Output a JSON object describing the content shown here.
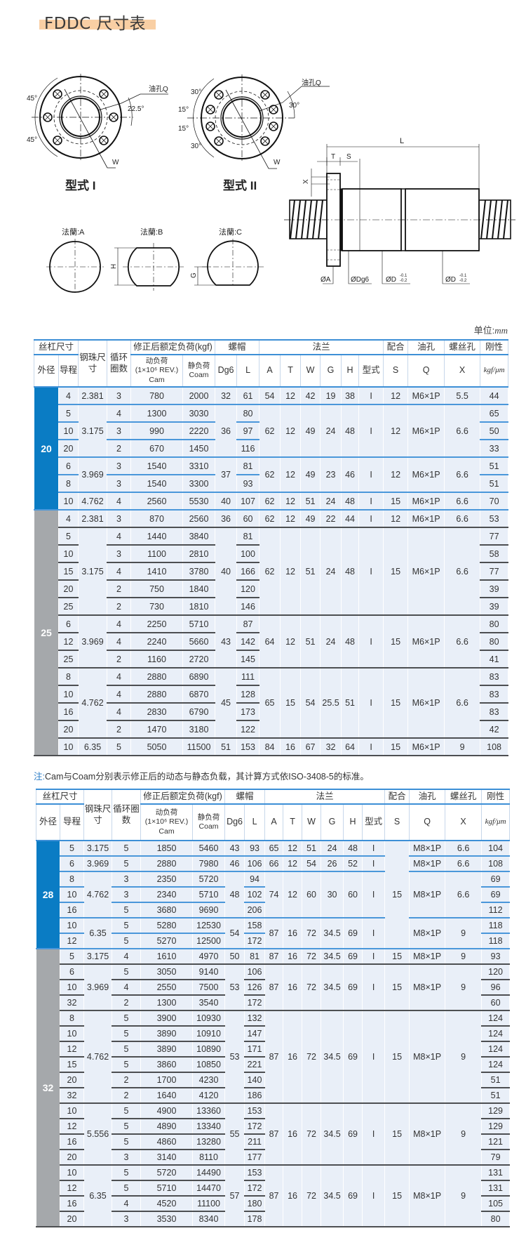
{
  "title": "FDDC 尺寸表",
  "drawings": {
    "type1_label": "型式 I",
    "type2_label": "型式 II",
    "type1_angles": [
      "45°",
      "45°",
      "22.5°"
    ],
    "type2_angles": [
      "30°",
      "15°",
      "15°",
      "30°",
      "30°"
    ],
    "oil_hole": "油孔Q",
    "w": "W",
    "flange_a": "法蘭:A",
    "flange_b": "法蘭:B",
    "flange_c": "法蘭:C",
    "h": "H",
    "g": "G",
    "side": {
      "L": "L",
      "T": "T",
      "S": "S",
      "X": "X",
      "A": "ØA",
      "Dg6": "ØDg6",
      "D": "ØD",
      "tol_upper": "-0.1",
      "tol_lower": "-0.2"
    }
  },
  "unit": {
    "label": "单位:",
    "value": "mm"
  },
  "colors": {
    "blue": "#0a7cc4",
    "grey": "#a5a8ab",
    "highlight": "#f9cfa4"
  },
  "header": {
    "screw": "丝杠尺寸",
    "ball": "钢珠尺寸",
    "turns": "循环圈数",
    "load": "修正后额定负荷(kgf)",
    "nut": "螺帽",
    "flange": "法兰",
    "fit": "配合",
    "oil": "油孔",
    "bolt": "螺丝孔",
    "stiff": "刚性",
    "od": "外径",
    "lead": "导程",
    "dyn": "动负荷",
    "dyn_rev": "(1×10⁶ REV.)",
    "cam": "Cam",
    "stat": "静负荷",
    "coam": "Coam",
    "dg6": "Dg6",
    "l": "L",
    "a": "A",
    "t": "T",
    "w": "W",
    "g": "G",
    "h": "H",
    "type": "型式",
    "s": "S",
    "q": "Q",
    "x": "X",
    "stiff_unit": "kgf/μm"
  },
  "note": {
    "label": "注:",
    "text": "Cam与Coam分别表示修正后的动态与静态负载，其计算方式依ISO-3408-5的标准。"
  },
  "tables": [
    {
      "sections": [
        {
          "color": "blue",
          "rows": [
            [
              "20",
              "4",
              "2.381",
              "3",
              "780",
              "2000",
              "32",
              "61",
              "54",
              "12",
              "42",
              "19",
              "38",
              "I",
              "12",
              "M6×1P",
              "5.5",
              "44"
            ],
            [
              null,
              "5",
              "3.175",
              "4",
              "1300",
              "3030",
              "36",
              "80",
              "62",
              "12",
              "49",
              "24",
              "48",
              "I",
              "12",
              "M6×1P",
              "6.6",
              "65"
            ],
            [
              null,
              "10",
              null,
              "3",
              "990",
              "2220",
              null,
              "97",
              null,
              null,
              null,
              null,
              null,
              null,
              null,
              null,
              null,
              "50"
            ],
            [
              null,
              "20",
              null,
              "2",
              "670",
              "1450",
              null,
              "116",
              null,
              null,
              null,
              null,
              null,
              null,
              null,
              null,
              null,
              "33"
            ],
            [
              null,
              "6",
              "3.969",
              "3",
              "1540",
              "3310",
              "37",
              "81",
              "62",
              "12",
              "49",
              "23",
              "46",
              "I",
              "12",
              "M6×1P",
              "6.6",
              "51"
            ],
            [
              null,
              "8",
              null,
              "3",
              "1540",
              "3300",
              null,
              "93",
              null,
              null,
              null,
              null,
              null,
              null,
              null,
              null,
              null,
              "51"
            ],
            [
              null,
              "10",
              "4.762",
              "4",
              "2560",
              "5530",
              "40",
              "107",
              "62",
              "12",
              "51",
              "24",
              "48",
              "I",
              "15",
              "M6×1P",
              "6.6",
              "70"
            ]
          ]
        },
        {
          "color": "grey",
          "rows": [
            [
              "25",
              "4",
              "2.381",
              "3",
              "870",
              "2560",
              "36",
              "60",
              "62",
              "12",
              "49",
              "22",
              "44",
              "I",
              "12",
              "M6×1P",
              "6.6",
              "53"
            ],
            [
              null,
              "5",
              "3.175",
              "4",
              "1440",
              "3840",
              "40",
              "81",
              "62",
              "12",
              "51",
              "24",
              "48",
              "I",
              "15",
              "M6×1P",
              "6.6",
              "77"
            ],
            [
              null,
              "10",
              null,
              "3",
              "1100",
              "2810",
              null,
              "100",
              null,
              null,
              null,
              null,
              null,
              null,
              null,
              null,
              null,
              "58"
            ],
            [
              null,
              "15",
              null,
              "4",
              "1410",
              "3780",
              null,
              "166",
              null,
              null,
              null,
              null,
              null,
              null,
              null,
              null,
              null,
              "77"
            ],
            [
              null,
              "20",
              null,
              "2",
              "750",
              "1840",
              null,
              "120",
              null,
              null,
              null,
              null,
              null,
              null,
              null,
              null,
              null,
              "39"
            ],
            [
              null,
              "25",
              null,
              "2",
              "730",
              "1810",
              null,
              "146",
              null,
              null,
              null,
              null,
              null,
              null,
              null,
              null,
              null,
              "39"
            ],
            [
              null,
              "6",
              "3.969",
              "4",
              "2250",
              "5710",
              "43",
              "87",
              "64",
              "12",
              "51",
              "24",
              "48",
              "I",
              "15",
              "M6×1P",
              "6.6",
              "80"
            ],
            [
              null,
              "12",
              null,
              "4",
              "2240",
              "5660",
              null,
              "142",
              null,
              null,
              null,
              null,
              null,
              null,
              null,
              null,
              null,
              "80"
            ],
            [
              null,
              "25",
              null,
              "2",
              "1160",
              "2720",
              null,
              "145",
              null,
              null,
              null,
              null,
              null,
              null,
              null,
              null,
              null,
              "41"
            ],
            [
              null,
              "8",
              "4.762",
              "4",
              "2880",
              "6890",
              "45",
              "111",
              "65",
              "15",
              "54",
              "25.5",
              "51",
              "I",
              "15",
              "M6×1P",
              "6.6",
              "83"
            ],
            [
              null,
              "10",
              null,
              "4",
              "2880",
              "6870",
              null,
              "128",
              null,
              null,
              null,
              null,
              null,
              null,
              null,
              null,
              null,
              "83"
            ],
            [
              null,
              "16",
              null,
              "4",
              "2830",
              "6790",
              null,
              "173",
              null,
              null,
              null,
              null,
              null,
              null,
              null,
              null,
              null,
              "83"
            ],
            [
              null,
              "20",
              null,
              "2",
              "1470",
              "3180",
              null,
              "122",
              null,
              null,
              null,
              null,
              null,
              null,
              null,
              null,
              null,
              "42"
            ],
            [
              null,
              "10",
              "6.35",
              "5",
              "5050",
              "11500",
              "51",
              "153",
              "84",
              "16",
              "67",
              "32",
              "64",
              "I",
              "15",
              "M6×1P",
              "9",
              "108"
            ]
          ]
        }
      ]
    },
    {
      "sections": [
        {
          "color": "blue",
          "rows": [
            [
              "28",
              "5",
              "3.175",
              "5",
              "1850",
              "5460",
              "43",
              "93",
              "65",
              "12",
              "51",
              "24",
              "48",
              "I",
              "15",
              "M8×1P",
              "6.6",
              "104"
            ],
            [
              null,
              "6",
              "3.969",
              "5",
              "2880",
              "7980",
              "46",
              "106",
              "66",
              "12",
              "54",
              "26",
              "52",
              "I",
              null,
              "M8×1P",
              "6.6",
              "108"
            ],
            [
              null,
              "8",
              "4.762",
              "3",
              "2350",
              "5720",
              "48",
              "94",
              "74",
              "12",
              "60",
              "30",
              "60",
              "I",
              null,
              "M8×1P",
              "6.6",
              "69"
            ],
            [
              null,
              "10",
              null,
              "3",
              "2340",
              "5710",
              null,
              "102",
              null,
              null,
              null,
              null,
              null,
              null,
              null,
              null,
              null,
              "69"
            ],
            [
              null,
              "16",
              null,
              "5",
              "3680",
              "9690",
              null,
              "206",
              null,
              null,
              null,
              null,
              null,
              null,
              null,
              null,
              null,
              "112"
            ],
            [
              null,
              "10",
              "6.35",
              "5",
              "5280",
              "12530",
              "54",
              "158",
              "87",
              "16",
              "72",
              "34.5",
              "69",
              "I",
              null,
              "M8×1P",
              "9",
              "118"
            ],
            [
              null,
              "12",
              null,
              "5",
              "5270",
              "12500",
              null,
              "172",
              null,
              null,
              null,
              null,
              null,
              null,
              null,
              null,
              null,
              "118"
            ]
          ]
        },
        {
          "color": "grey",
          "rows": [
            [
              "32",
              "5",
              "3.175",
              "4",
              "1610",
              "4970",
              "50",
              "81",
              "87",
              "16",
              "72",
              "34.5",
              "69",
              "I",
              "15",
              "M8×1P",
              "9",
              "93"
            ],
            [
              null,
              "6",
              "3.969",
              "5",
              "3050",
              "9140",
              "53",
              "106",
              "87",
              "16",
              "72",
              "34.5",
              "69",
              "I",
              "15",
              "M8×1P",
              "9",
              "120"
            ],
            [
              null,
              "10",
              null,
              "4",
              "2550",
              "7500",
              null,
              "126",
              null,
              null,
              null,
              null,
              null,
              null,
              null,
              null,
              null,
              "96"
            ],
            [
              null,
              "32",
              null,
              "2",
              "1300",
              "3540",
              null,
              "172",
              null,
              null,
              null,
              null,
              null,
              null,
              null,
              null,
              null,
              "60"
            ],
            [
              null,
              "8",
              "4.762",
              "5",
              "3900",
              "10930",
              "53",
              "132",
              "87",
              "16",
              "72",
              "34.5",
              "69",
              "I",
              "15",
              "M8×1P",
              "9",
              "124"
            ],
            [
              null,
              "10",
              null,
              "5",
              "3890",
              "10910",
              null,
              "147",
              null,
              null,
              null,
              null,
              null,
              null,
              null,
              null,
              null,
              "124"
            ],
            [
              null,
              "12",
              null,
              "5",
              "3890",
              "10890",
              null,
              "171",
              null,
              null,
              null,
              null,
              null,
              null,
              null,
              null,
              null,
              "124"
            ],
            [
              null,
              "15",
              null,
              "5",
              "3860",
              "10850",
              null,
              "221",
              null,
              null,
              null,
              null,
              null,
              null,
              null,
              null,
              null,
              "124"
            ],
            [
              null,
              "20",
              null,
              "2",
              "1700",
              "4230",
              null,
              "140",
              null,
              null,
              null,
              null,
              null,
              null,
              null,
              null,
              null,
              "51"
            ],
            [
              null,
              "32",
              null,
              "2",
              "1640",
              "4120",
              null,
              "186",
              null,
              null,
              null,
              null,
              null,
              null,
              null,
              null,
              null,
              "51"
            ],
            [
              null,
              "10",
              "5.556",
              "5",
              "4900",
              "13360",
              "55",
              "153",
              "87",
              "16",
              "72",
              "34.5",
              "69",
              "I",
              "15",
              "M8×1P",
              "9",
              "129"
            ],
            [
              null,
              "12",
              null,
              "5",
              "4890",
              "13340",
              null,
              "172",
              null,
              null,
              null,
              null,
              null,
              null,
              null,
              null,
              null,
              "129"
            ],
            [
              null,
              "16",
              null,
              "5",
              "4860",
              "13280",
              null,
              "211",
              null,
              null,
              null,
              null,
              null,
              null,
              null,
              null,
              null,
              "121"
            ],
            [
              null,
              "20",
              null,
              "3",
              "3140",
              "8110",
              null,
              "177",
              null,
              null,
              null,
              null,
              null,
              null,
              null,
              null,
              null,
              "79"
            ],
            [
              null,
              "10",
              "6.35",
              "5",
              "5720",
              "14490",
              "57",
              "153",
              "87",
              "16",
              "72",
              "34.5",
              "69",
              "I",
              "15",
              "M8×1P",
              "9",
              "131"
            ],
            [
              null,
              "12",
              null,
              "5",
              "5710",
              "14470",
              null,
              "172",
              null,
              null,
              null,
              null,
              null,
              null,
              null,
              null,
              null,
              "131"
            ],
            [
              null,
              "16",
              null,
              "4",
              "4520",
              "11100",
              null,
              "180",
              null,
              null,
              null,
              null,
              null,
              null,
              null,
              null,
              null,
              "105"
            ],
            [
              null,
              "20",
              null,
              "3",
              "3530",
              "8340",
              null,
              "178",
              null,
              null,
              null,
              null,
              null,
              null,
              null,
              null,
              null,
              "80"
            ]
          ]
        }
      ]
    }
  ]
}
